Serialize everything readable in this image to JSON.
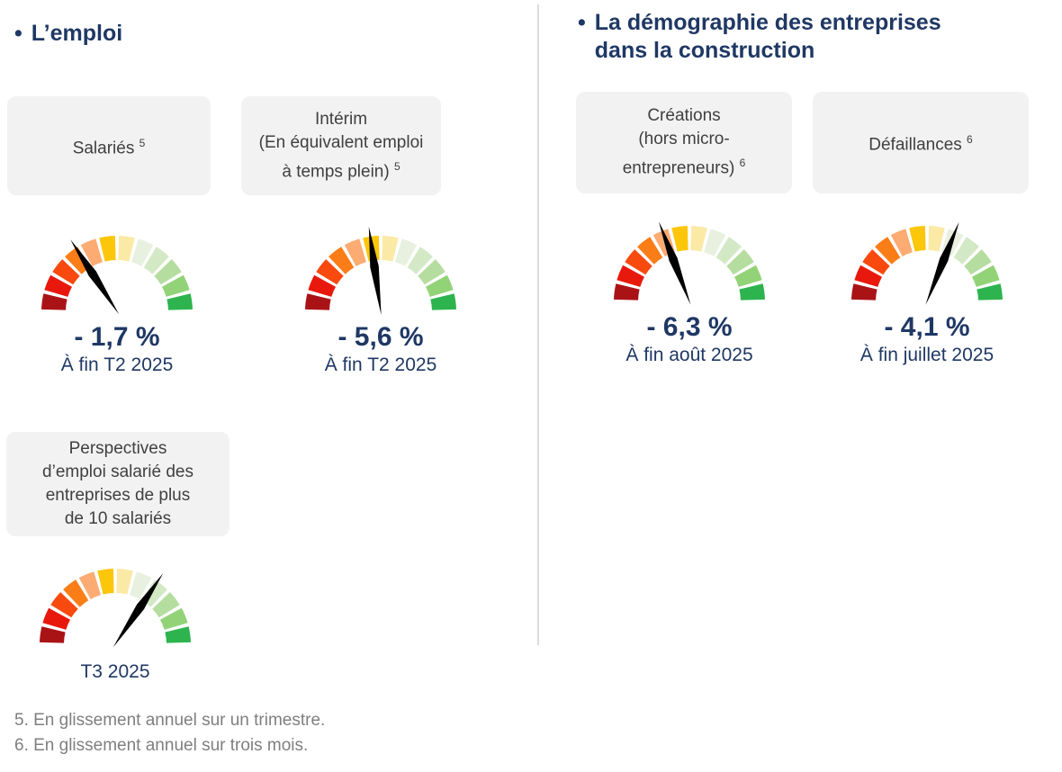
{
  "page": {
    "background": "#ffffff"
  },
  "sections": [
    {
      "bullet": "•",
      "title_lines": [
        "L’emploi"
      ]
    },
    {
      "bullet": "•",
      "title_lines": [
        "La démographie des entreprises",
        "dans la construction"
      ]
    }
  ],
  "cards": [
    {
      "name": "salaries",
      "lines": [
        "Salariés"
      ],
      "footnote_ref": "5"
    },
    {
      "name": "interim",
      "lines": [
        "Intérim",
        "(En équivalent emploi",
        "à temps plein)"
      ],
      "footnote_ref": "5"
    },
    {
      "name": "creations",
      "lines": [
        "Créations",
        "(hors micro-",
        "entrepreneurs)"
      ],
      "footnote_ref": "6"
    },
    {
      "name": "defaillances",
      "lines": [
        "Défaillances"
      ],
      "footnote_ref": "6"
    },
    {
      "name": "perspectives",
      "lines": [
        "Perspectives",
        "d’emploi salarié des",
        "entreprises de plus",
        "de 10 salariés"
      ],
      "footnote_ref": null
    }
  ],
  "chart_data": [
    {
      "type": "gauge",
      "label": "Salariés",
      "value": -1.7,
      "unit": "%",
      "display_value": "- 1,7 %",
      "period": "À fin T2 2025",
      "needle_angle_deg": 123,
      "scale": "semicircle 180deg, red (left/bad) to green (right/good), 12 segments"
    },
    {
      "type": "gauge",
      "label": "Intérim (En équivalent emploi à temps plein)",
      "value": -5.6,
      "unit": "%",
      "display_value": "- 5,6 %",
      "period": "À fin T2 2025",
      "needle_angle_deg": 98,
      "scale": "semicircle 180deg, red to green, 12 segments"
    },
    {
      "type": "gauge",
      "label": "Créations (hors micro-entrepreneurs)",
      "value": -6.3,
      "unit": "%",
      "display_value": "- 6,3 %",
      "period": "À fin août 2025",
      "needle_angle_deg": 111,
      "scale": "semicircle 180deg, red to green, 12 segments"
    },
    {
      "type": "gauge",
      "label": "Défaillances",
      "value": -4.1,
      "unit": "%",
      "display_value": "- 4,1 %",
      "period": "À fin juillet 2025",
      "needle_angle_deg": 68,
      "scale": "semicircle 180deg, red to green, 12 segments"
    },
    {
      "type": "gauge",
      "label": "Perspectives d’emploi salarié des entreprises de plus de 10 salariés",
      "value": null,
      "unit": "%",
      "display_value": "",
      "period": "T3 2025",
      "needle_angle_deg": 56,
      "scale": "semicircle 180deg, red to green, 12 segments"
    }
  ],
  "gauge_style": {
    "segments": 12,
    "arc_span_deg": 180,
    "segment_colors": [
      "#AA1316",
      "#E8190C",
      "#F8490E",
      "#FB7D17",
      "#FCAB72",
      "#FCC60B",
      "#FBE9A6",
      "#E8F1DF",
      "#D3E9C6",
      "#B6DDA0",
      "#92D377",
      "#2EB44E"
    ],
    "needle_color": "#000000"
  },
  "footnotes": [
    "5. En glissement annuel sur un trimestre.",
    "6. En glissement annuel sur trois mois."
  ],
  "colors": {
    "heading": "#1f3864",
    "value_text": "#1f3864",
    "card_bg": "#f2f2f2",
    "card_text": "#404040",
    "footnote_text": "#7f7f7f",
    "divider": "#dcdcdc"
  }
}
